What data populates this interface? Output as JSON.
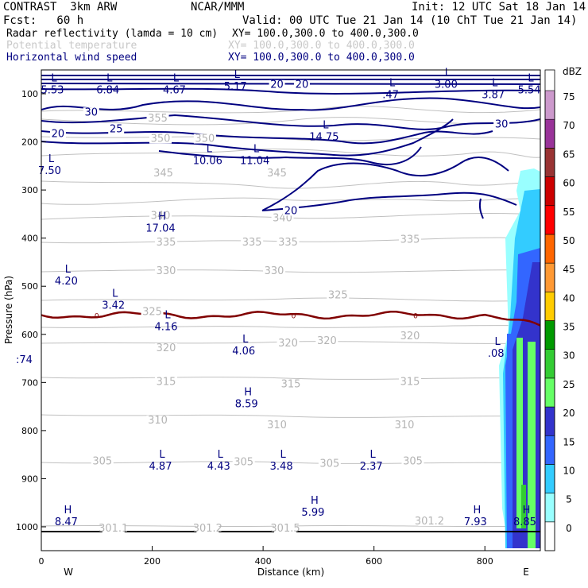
{
  "header": {
    "model": "CONTRAST  3km ARW",
    "center": "NCAR/MMM",
    "init": "Init: 12 UTC Sat 18 Jan 14",
    "fcst": "Fcst:   60 h",
    "valid": "Valid: 00 UTC Tue 21 Jan 14 (10 ChT Tue 21 Jan 14)",
    "fields": [
      {
        "name": "Radar reflectivity (lamda = 10 cm)",
        "xy": "XY= 100.0,300.0 to 400.0,300.0",
        "color": "#000000"
      },
      {
        "name": "Potential temperature",
        "xy": "XY= 100.0,300.0 to 400.0,300.0",
        "color": "#c8c8c8"
      },
      {
        "name": "Horizontal wind speed",
        "xy": "XY= 100.0,300.0 to 400.0,300.0",
        "color": "#000080"
      }
    ]
  },
  "chart_data": {
    "type": "cross-section",
    "xlabel": "Distance (km)",
    "ylabel": "Pressure (hPa)",
    "xlim": [
      0,
      900
    ],
    "ylim": [
      1050,
      50
    ],
    "xticks": [
      0,
      200,
      400,
      600,
      800
    ],
    "yticks": [
      100,
      200,
      300,
      400,
      500,
      600,
      700,
      800,
      900,
      1000
    ],
    "endpoint_labels": {
      "left": "W",
      "right": "E"
    },
    "left_edge_text": ":74",
    "colorbar": {
      "unit": "dBZ",
      "levels": [
        0,
        5,
        10,
        15,
        20,
        25,
        30,
        35,
        40,
        45,
        50,
        55,
        60,
        65,
        70,
        75
      ],
      "colors": [
        "#ffffff",
        "#99ffff",
        "#33ccff",
        "#3366ff",
        "#3333cc",
        "#66ff66",
        "#33cc33",
        "#009900",
        "#ffcc00",
        "#ff9933",
        "#ff6600",
        "#ff0000",
        "#cc0000",
        "#993333",
        "#993399",
        "#cc99cc"
      ]
    },
    "theta_labels": [
      {
        "x": 210,
        "p": 158,
        "v": "355"
      },
      {
        "x": 215,
        "p": 200,
        "v": "350"
      },
      {
        "x": 295,
        "p": 200,
        "v": "350"
      },
      {
        "x": 220,
        "p": 272,
        "v": "345"
      },
      {
        "x": 425,
        "p": 272,
        "v": "345"
      },
      {
        "x": 215,
        "p": 360,
        "v": "340"
      },
      {
        "x": 435,
        "p": 365,
        "v": "340"
      },
      {
        "x": 225,
        "p": 415,
        "v": "335"
      },
      {
        "x": 380,
        "p": 415,
        "v": "335"
      },
      {
        "x": 445,
        "p": 415,
        "v": "335"
      },
      {
        "x": 665,
        "p": 410,
        "v": "335"
      },
      {
        "x": 225,
        "p": 475,
        "v": "330"
      },
      {
        "x": 420,
        "p": 475,
        "v": "330"
      },
      {
        "x": 535,
        "p": 525,
        "v": "325"
      },
      {
        "x": 200,
        "p": 560,
        "v": "325"
      },
      {
        "x": 445,
        "p": 625,
        "v": "320"
      },
      {
        "x": 515,
        "p": 620,
        "v": "320"
      },
      {
        "x": 665,
        "p": 610,
        "v": "320"
      },
      {
        "x": 225,
        "p": 635,
        "v": "320"
      },
      {
        "x": 225,
        "p": 705,
        "v": "315"
      },
      {
        "x": 450,
        "p": 710,
        "v": "315"
      },
      {
        "x": 665,
        "p": 705,
        "v": "315"
      },
      {
        "x": 210,
        "p": 785,
        "v": "310"
      },
      {
        "x": 425,
        "p": 795,
        "v": "310"
      },
      {
        "x": 655,
        "p": 795,
        "v": "310"
      },
      {
        "x": 110,
        "p": 870,
        "v": "305"
      },
      {
        "x": 365,
        "p": 872,
        "v": "305"
      },
      {
        "x": 520,
        "p": 875,
        "v": "305"
      },
      {
        "x": 670,
        "p": 870,
        "v": "305"
      },
      {
        "x": 130,
        "p": 1010,
        "v": "301.1"
      },
      {
        "x": 300,
        "p": 1010,
        "v": "301.2"
      },
      {
        "x": 440,
        "p": 1010,
        "v": "301.5"
      },
      {
        "x": 700,
        "p": 995,
        "v": "301.2"
      }
    ],
    "wind_labels": [
      {
        "x": 90,
        "p": 145,
        "v": "30"
      },
      {
        "x": 135,
        "p": 180,
        "v": "25"
      },
      {
        "x": 30,
        "p": 190,
        "v": "20"
      },
      {
        "x": 425,
        "p": 88,
        "v": "20"
      },
      {
        "x": 470,
        "p": 88,
        "v": "20"
      },
      {
        "x": 830,
        "p": 170,
        "v": "30"
      },
      {
        "x": 450,
        "p": 350,
        "v": "20"
      }
    ],
    "hl_labels": [
      {
        "x": 20,
        "p": 78,
        "t": "L",
        "v": "5.53"
      },
      {
        "x": 120,
        "p": 78,
        "t": "L",
        "v": "6.84"
      },
      {
        "x": 240,
        "p": 78,
        "t": "L",
        "v": "4.67"
      },
      {
        "x": 350,
        "p": 70,
        "t": "L",
        "v": "5.17"
      },
      {
        "x": 630,
        "p": 88,
        "t": "L",
        "v": ".47"
      },
      {
        "x": 730,
        "p": 66,
        "t": "L",
        "v": "3.00"
      },
      {
        "x": 815,
        "p": 88,
        "t": "L",
        "v": "3.87"
      },
      {
        "x": 880,
        "p": 78,
        "t": "L",
        "v": "5.54"
      },
      {
        "x": 510,
        "p": 175,
        "t": "L",
        "v": "14.75"
      },
      {
        "x": 300,
        "p": 225,
        "t": "L",
        "v": "10.06"
      },
      {
        "x": 385,
        "p": 225,
        "t": "L",
        "v": "11.04"
      },
      {
        "x": 15,
        "p": 245,
        "t": "L",
        "v": "7.50"
      },
      {
        "x": 215,
        "p": 365,
        "t": "H",
        "v": "17.04"
      },
      {
        "x": 45,
        "p": 475,
        "t": "L",
        "v": "4.20"
      },
      {
        "x": 130,
        "p": 525,
        "t": "L",
        "v": "3.42"
      },
      {
        "x": 225,
        "p": 570,
        "t": "L",
        "v": "4.16"
      },
      {
        "x": 365,
        "p": 620,
        "t": "L",
        "v": "4.06"
      },
      {
        "x": 820,
        "p": 625,
        "t": "L",
        "v": ".08"
      },
      {
        "x": 370,
        "p": 730,
        "t": "H",
        "v": "8.59"
      },
      {
        "x": 215,
        "p": 860,
        "t": "L",
        "v": "4.87"
      },
      {
        "x": 320,
        "p": 860,
        "t": "L",
        "v": "4.43"
      },
      {
        "x": 433,
        "p": 860,
        "t": "L",
        "v": "3.48"
      },
      {
        "x": 595,
        "p": 860,
        "t": "L",
        "v": "2.37"
      },
      {
        "x": 45,
        "p": 975,
        "t": "H",
        "v": "8.47"
      },
      {
        "x": 490,
        "p": 955,
        "t": "H",
        "v": "5.99"
      },
      {
        "x": 783,
        "p": 975,
        "t": "H",
        "v": "7.93"
      },
      {
        "x": 872,
        "p": 975,
        "t": "H",
        "v": "8.85"
      }
    ],
    "freezing_level_label": "0",
    "freezing_level_p": 560
  }
}
